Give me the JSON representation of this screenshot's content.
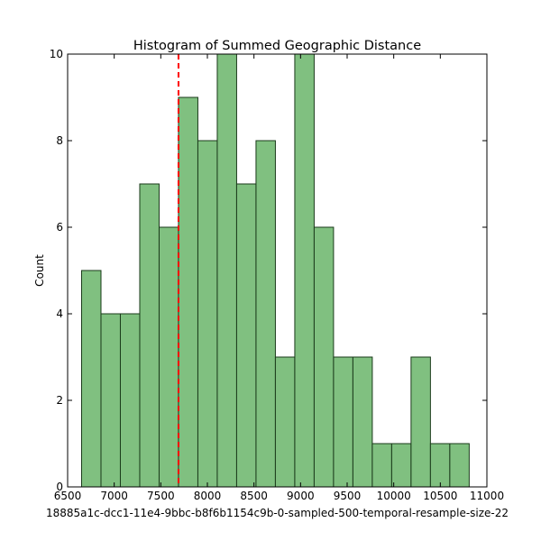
{
  "chart_data": {
    "type": "bar",
    "title": "Histogram of Summed Geographic Distance",
    "xlabel": "18885a1c-dcc1-11e4-9bbc-b8f6b1154c9b-0-sampled-500-temporal-resample-size-22",
    "ylabel": "Count",
    "xlim": [
      6500,
      11000
    ],
    "ylim": [
      0,
      10
    ],
    "xticks": [
      "6500",
      "7000",
      "7500",
      "8000",
      "8500",
      "9000",
      "9500",
      "10000",
      "10500",
      "11000"
    ],
    "yticks": [
      "0",
      "2",
      "4",
      "6",
      "8",
      "10"
    ],
    "bins": [
      {
        "x0": 6650,
        "x1": 6858,
        "count": 5
      },
      {
        "x0": 6858,
        "x1": 7066,
        "count": 4
      },
      {
        "x0": 7066,
        "x1": 7274,
        "count": 4
      },
      {
        "x0": 7274,
        "x1": 7482,
        "count": 7
      },
      {
        "x0": 7482,
        "x1": 7690,
        "count": 6
      },
      {
        "x0": 7690,
        "x1": 7898,
        "count": 9
      },
      {
        "x0": 7898,
        "x1": 8106,
        "count": 8
      },
      {
        "x0": 8106,
        "x1": 8314,
        "count": 10
      },
      {
        "x0": 8314,
        "x1": 8522,
        "count": 7
      },
      {
        "x0": 8522,
        "x1": 8730,
        "count": 8
      },
      {
        "x0": 8730,
        "x1": 8938,
        "count": 3
      },
      {
        "x0": 8938,
        "x1": 9146,
        "count": 10
      },
      {
        "x0": 9146,
        "x1": 9354,
        "count": 6
      },
      {
        "x0": 9354,
        "x1": 9562,
        "count": 3
      },
      {
        "x0": 9562,
        "x1": 9770,
        "count": 3
      },
      {
        "x0": 9770,
        "x1": 9978,
        "count": 1
      },
      {
        "x0": 9978,
        "x1": 10186,
        "count": 1
      },
      {
        "x0": 10186,
        "x1": 10394,
        "count": 3
      },
      {
        "x0": 10394,
        "x1": 10602,
        "count": 1
      },
      {
        "x0": 10602,
        "x1": 10810,
        "count": 1
      }
    ],
    "reference_line": {
      "x": 7690,
      "color": "#ff0000",
      "style": "dashed"
    },
    "bar_color": "#80c080",
    "bar_edge_color": "#1a3a1a",
    "grid": false,
    "legend": "none"
  }
}
